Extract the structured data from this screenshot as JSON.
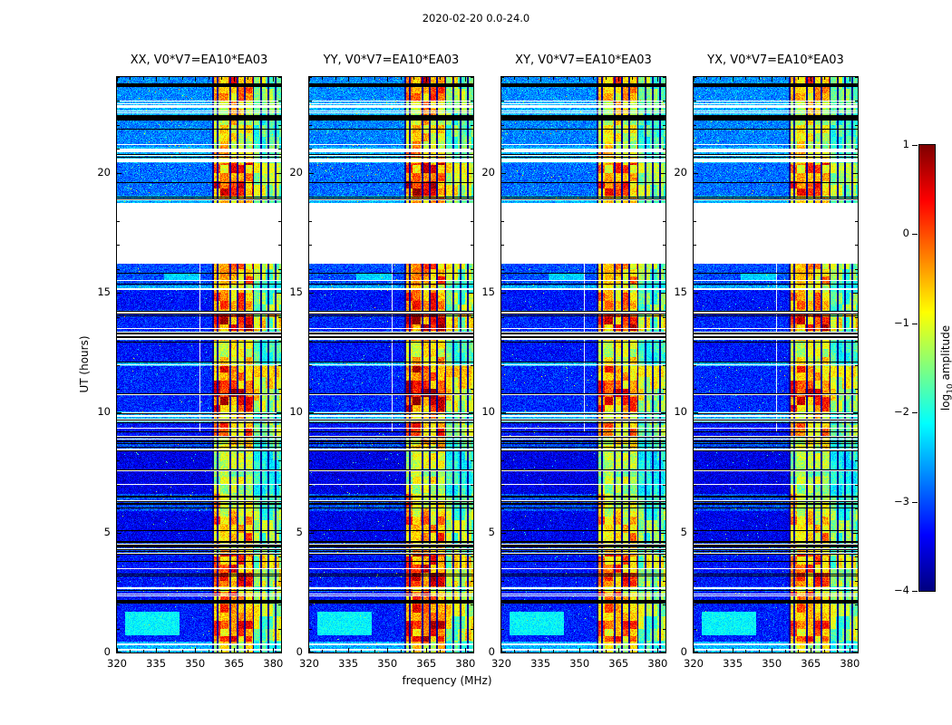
{
  "figure": {
    "title": "2020-02-20 0.0-24.0"
  },
  "chart_data": {
    "type": "heatmap",
    "description": "Four dynamic-spectrum (waterfall) panels of correlation products XX, YY, XY, YX for baseline V0*V7=EA10*EA03, frequency 320-383 MHz vs UT 0-24 hours, jet colormap of log10 amplitude from -4 to 1. Strong RFI band near 357-380 MHz, a blank (no data) gap from about 16.2 to 18.75 UT, and many flagged black / missing white time rows.",
    "panels": [
      {
        "title": "XX, V0*V7=EA10*EA03",
        "seed": 101,
        "band_gain": 0.92
      },
      {
        "title": "YY, V0*V7=EA10*EA03",
        "seed": 202,
        "band_gain": 1.0
      },
      {
        "title": "XY, V0*V7=EA10*EA03",
        "seed": 303,
        "band_gain": 0.85
      },
      {
        "title": "YX, V0*V7=EA10*EA03",
        "seed": 404,
        "band_gain": 0.85
      }
    ],
    "x": {
      "label": "frequency (MHz)",
      "range": [
        320,
        383
      ],
      "ticks": [
        320,
        335,
        350,
        365,
        380
      ],
      "tick_labels": [
        "320",
        "335",
        "350",
        "365",
        "380"
      ],
      "minor_step": 5
    },
    "y": {
      "label": "UT (hours)",
      "range": [
        0,
        24
      ],
      "ticks": [
        0,
        5,
        10,
        15,
        20
      ],
      "tick_labels": [
        "0",
        "5",
        "10",
        "15",
        "20"
      ],
      "minor_step": 1
    },
    "colorbar": {
      "label_prefix": "log",
      "label_sub": "10",
      "label_suffix": " amplitude",
      "range": [
        -4,
        1
      ],
      "ticks": [
        1,
        0,
        -1,
        -2,
        -3,
        -4
      ],
      "tick_labels": [
        "1",
        "0",
        "−1",
        "−2",
        "−3",
        "−4"
      ],
      "colormap": "jet"
    },
    "rfi_band": {
      "strong": [
        356.8,
        372.2
      ],
      "moderate": [
        372.2,
        383
      ],
      "dark_lines": [
        357.0,
        358.6,
        363.4,
        366.3,
        369.2,
        372.4,
        375.3,
        378.2,
        380.9
      ],
      "white_line": {
        "freq": 351.8,
        "t0": 9.2,
        "t1": 16.2
      }
    },
    "gap": {
      "t0": 16.2,
      "t1": 18.75
    },
    "segments": [
      {
        "t0": 0.0,
        "t1": 0.45,
        "kind": "stripes",
        "mix": "light"
      },
      {
        "t0": 0.45,
        "t1": 2.05,
        "kind": "data",
        "base": -3.25,
        "band": 0.85,
        "blob": [
          323,
          344,
          0.7,
          1.7,
          -2.15
        ]
      },
      {
        "t0": 2.05,
        "t1": 2.2,
        "kind": "black"
      },
      {
        "t0": 2.2,
        "t1": 2.55,
        "kind": "data",
        "base": -3.3,
        "band": 0.9
      },
      {
        "t0": 2.55,
        "t1": 2.75,
        "kind": "stripes",
        "mix": "dark"
      },
      {
        "t0": 2.75,
        "t1": 4.1,
        "kind": "data",
        "base": -3.3,
        "band": 0.92
      },
      {
        "t0": 4.1,
        "t1": 4.65,
        "kind": "stripes",
        "mix": "dark"
      },
      {
        "t0": 4.65,
        "t1": 5.9,
        "kind": "data",
        "base": -3.45,
        "band": 0.7
      },
      {
        "t0": 5.9,
        "t1": 6.6,
        "kind": "stripes",
        "mix": "dark"
      },
      {
        "t0": 6.6,
        "t1": 8.4,
        "kind": "data",
        "base": -3.5,
        "band": 0.45
      },
      {
        "t0": 8.4,
        "t1": 9.0,
        "kind": "stripes",
        "mix": "dark"
      },
      {
        "t0": 9.0,
        "t1": 9.6,
        "kind": "data",
        "base": -3.3,
        "band": 0.8
      },
      {
        "t0": 9.6,
        "t1": 10.05,
        "kind": "stripes",
        "mix": "light"
      },
      {
        "t0": 10.05,
        "t1": 11.95,
        "kind": "data",
        "base": -3.2,
        "band": 0.95
      },
      {
        "t0": 11.95,
        "t1": 12.15,
        "kind": "stripes",
        "mix": "light"
      },
      {
        "t0": 12.15,
        "t1": 13.0,
        "kind": "data",
        "base": -3.3,
        "band": 0.6
      },
      {
        "t0": 13.0,
        "t1": 13.4,
        "kind": "stripes",
        "mix": "dark"
      },
      {
        "t0": 13.4,
        "t1": 14.1,
        "kind": "data",
        "base": -3.2,
        "band": 1.0
      },
      {
        "t0": 14.1,
        "t1": 14.3,
        "kind": "stripes",
        "mix": "dark"
      },
      {
        "t0": 14.3,
        "t1": 15.1,
        "kind": "data",
        "base": -3.3,
        "band": 0.75
      },
      {
        "t0": 15.1,
        "t1": 15.3,
        "kind": "stripes",
        "mix": "light"
      },
      {
        "t0": 15.3,
        "t1": 16.2,
        "kind": "data",
        "base": -3.0,
        "band": 0.8,
        "blob": [
          338,
          352,
          15.5,
          15.85,
          -2.35
        ]
      },
      {
        "t0": 16.2,
        "t1": 18.75,
        "kind": "gap"
      },
      {
        "t0": 18.75,
        "t1": 19.05,
        "kind": "stripes",
        "mix": "light"
      },
      {
        "t0": 19.05,
        "t1": 20.4,
        "kind": "data",
        "base": -2.85,
        "band": 0.9,
        "speckle": true
      },
      {
        "t0": 20.4,
        "t1": 21.1,
        "kind": "stripes",
        "mix": "light"
      },
      {
        "t0": 21.1,
        "t1": 22.2,
        "kind": "data",
        "base": -2.75,
        "band": 0.55,
        "speckle": true
      },
      {
        "t0": 22.2,
        "t1": 22.4,
        "kind": "black"
      },
      {
        "t0": 22.4,
        "t1": 23.0,
        "kind": "stripes",
        "mix": "light"
      },
      {
        "t0": 23.0,
        "t1": 23.6,
        "kind": "data",
        "base": -2.7,
        "band": 0.7,
        "speckle": true
      },
      {
        "t0": 23.6,
        "t1": 23.72,
        "kind": "black"
      },
      {
        "t0": 23.72,
        "t1": 24.01,
        "kind": "data",
        "base": -2.7,
        "band": 0.85,
        "speckle": true
      }
    ]
  }
}
